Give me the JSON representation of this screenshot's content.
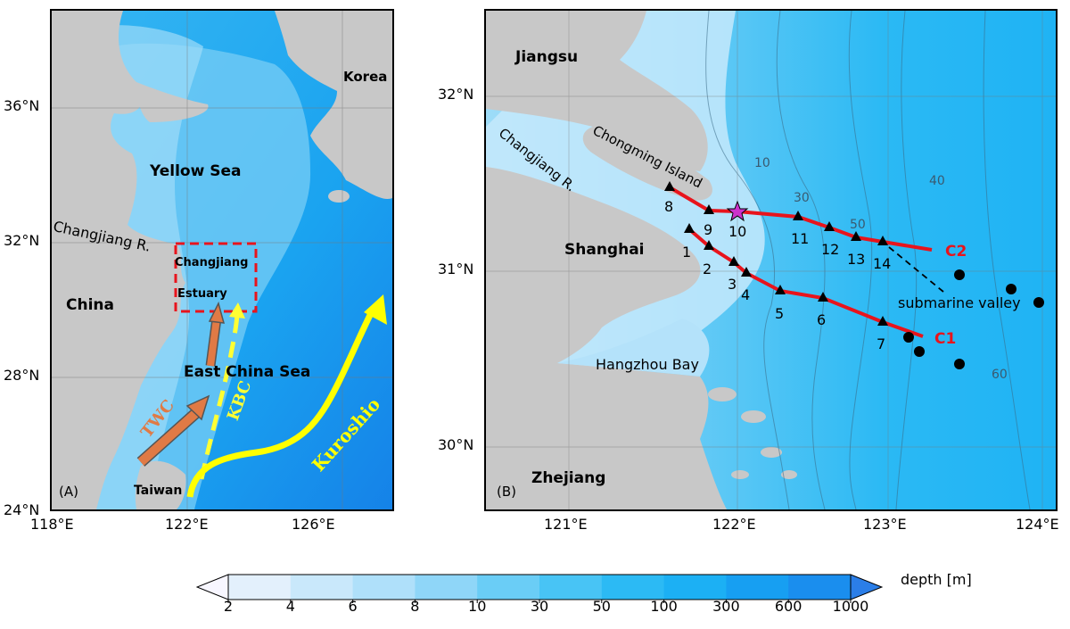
{
  "panelA": {
    "label": "(A)",
    "lat_ticks": [
      "36°N",
      "32°N",
      "28°N",
      "24°N"
    ],
    "lon_ticks": [
      "118°E",
      "122°E",
      "126°E"
    ],
    "labels": {
      "korea": "Korea",
      "yellow_sea": "Yellow Sea",
      "changjiang_r": "Changjiang R.",
      "china": "China",
      "changjiang": "Changjiang",
      "estuary": "Estuary",
      "east_china_sea": "East China Sea",
      "twc": "TWC",
      "kbc": "KBC",
      "kuroshio": "Kuroshio",
      "taiwan": "Taiwan"
    },
    "colors": {
      "land": "#c8c8c8",
      "box": "#e8141c",
      "twc": "#e07a45",
      "kbc": "#ffff33",
      "kuroshio": "#ffff00"
    }
  },
  "panelB": {
    "label": "(B)",
    "lat_ticks": [
      "32°N",
      "31°N",
      "30°N"
    ],
    "lon_ticks": [
      "121°E",
      "122°E",
      "123°E",
      "124°E"
    ],
    "labels": {
      "jiangsu": "Jiangsu",
      "chongming": "Chongming Island",
      "changjiang_r": "Changjiang R.",
      "shanghai": "Shanghai",
      "hangzhou_bay": "Hangzhou Bay",
      "zhejiang": "Zhejiang",
      "submarine_valley": "submarine valley",
      "c1": "C1",
      "c2": "C2"
    },
    "contours": [
      "10",
      "30",
      "40",
      "50",
      "60"
    ],
    "stations": [
      "1",
      "2",
      "3",
      "4",
      "5",
      "6",
      "7",
      "8",
      "9",
      "10",
      "11",
      "12",
      "13",
      "14"
    ],
    "colors": {
      "transect": "#e8141c",
      "star": "#cc33cc"
    }
  },
  "colorbar": {
    "title": "depth [m]",
    "ticks": [
      "2",
      "4",
      "6",
      "8",
      "10",
      "30",
      "50",
      "100",
      "300",
      "600",
      "1000"
    ],
    "colors": [
      "#f7f6ff",
      "#e3f0fc",
      "#c9e8fb",
      "#afe0fa",
      "#8fd6f8",
      "#6acdf6",
      "#48c4f5",
      "#2cbaf4",
      "#1cb0f4",
      "#179ff2",
      "#1a8eee",
      "#2b7ee8"
    ]
  }
}
